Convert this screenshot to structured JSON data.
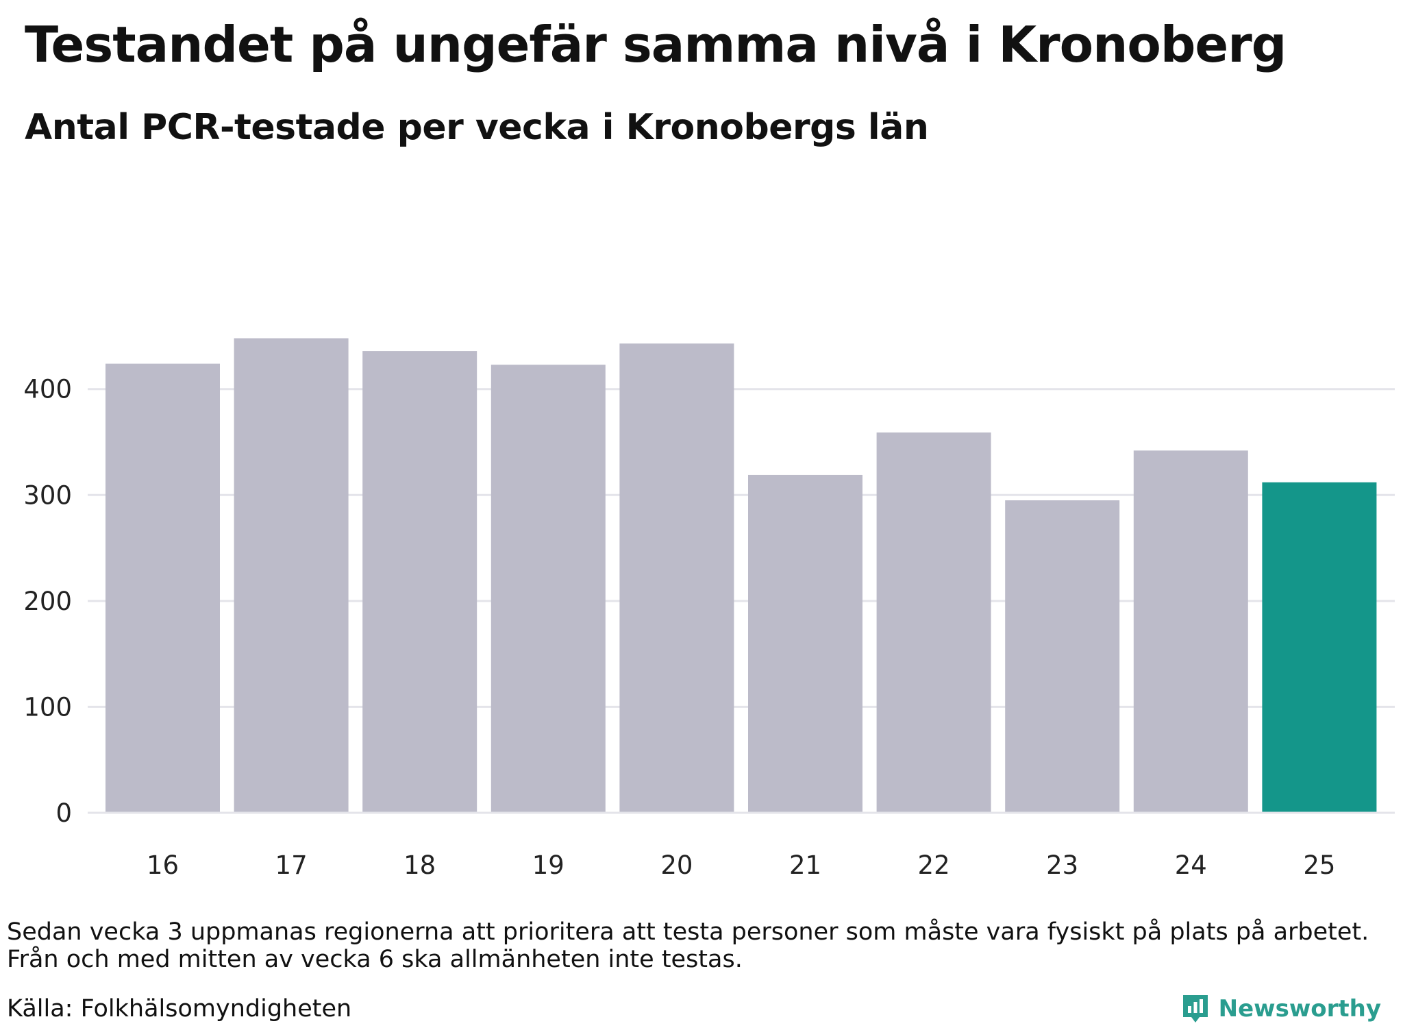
{
  "title": "Testandet på ungefär samma nivå i Kronoberg",
  "subtitle": "Antal PCR-testade per vecka i Kronobergs län",
  "note_lines": [
    "Sedan vecka 3 uppmanas regionerna att prioritera att testa personer som måste vara fysiskt på plats på arbetet.",
    "Från och med mitten av vecka 6 ska allmänheten inte testas."
  ],
  "source": "Källa: Folkhälsomyndigheten",
  "brand": {
    "name": "Newsworthy",
    "color": "#2a9d8f",
    "icon": "newsworthy-logo-icon"
  },
  "colors": {
    "bar": "#bcbbc9",
    "highlight": "#14968a",
    "grid": "#e4e4ea"
  },
  "chart_data": {
    "type": "bar",
    "categories": [
      "16",
      "17",
      "18",
      "19",
      "20",
      "21",
      "22",
      "23",
      "24",
      "25"
    ],
    "values": [
      424,
      448,
      436,
      423,
      443,
      319,
      359,
      295,
      342,
      312
    ],
    "highlight_index": 9,
    "title": "Testandet på ungefär samma nivå i Kronoberg",
    "subtitle": "Antal PCR-testade per vecka i Kronobergs län",
    "xlabel": "",
    "ylabel": "",
    "yticks": [
      0,
      100,
      200,
      300,
      400
    ],
    "ylim": [
      0,
      460
    ],
    "grid": true,
    "legend": "none"
  }
}
